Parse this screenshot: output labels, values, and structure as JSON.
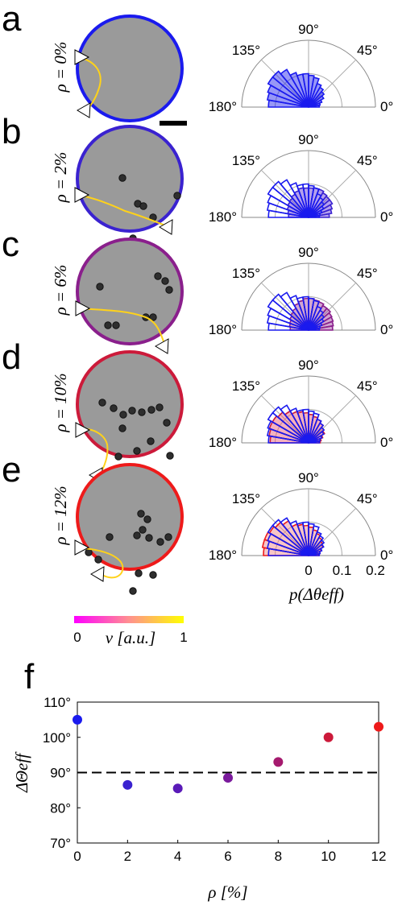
{
  "colorbar": {
    "min_label": "0",
    "max_label": "1",
    "label": "v [a.u.]",
    "colors": [
      "#ff00ff",
      "#ff9090",
      "#ffff00"
    ]
  },
  "chart_data": [
    {
      "type": "polar_histogram",
      "panel": "a",
      "rho_label": "ρ = 0%",
      "ring_color": "#1a1aee",
      "fill_color": "#1a1aee",
      "angle_labels": [
        "90°",
        "135°",
        "45°",
        "180°",
        "0°"
      ],
      "bins_deg": [
        0,
        10,
        20,
        30,
        40,
        50,
        60,
        70,
        80,
        90,
        100,
        110,
        120,
        130,
        140,
        150,
        160,
        170,
        180
      ],
      "values": [
        0.032,
        0.035,
        0.042,
        0.052,
        0.06,
        0.068,
        0.075,
        0.09,
        0.095,
        0.1,
        0.1,
        0.11,
        0.13,
        0.14,
        0.14,
        0.13,
        0.125,
        0.12
      ],
      "reference_values": []
    },
    {
      "type": "polar_histogram",
      "panel": "b",
      "rho_label": "ρ = 2%",
      "ring_color": "#3a22d0",
      "fill_color": "#5a2fd8",
      "angle_labels": [
        "90°",
        "135°",
        "45°",
        "180°",
        "0°"
      ],
      "bins_deg": [
        0,
        10,
        20,
        30,
        40,
        50,
        60,
        70,
        80,
        90,
        100,
        110,
        120,
        130,
        140,
        150,
        160,
        170,
        180
      ],
      "values": [
        0.062,
        0.07,
        0.075,
        0.082,
        0.082,
        0.085,
        0.09,
        0.09,
        0.088,
        0.088,
        0.09,
        0.085,
        0.08,
        0.075,
        0.072,
        0.068,
        0.063,
        0.06
      ],
      "reference_values": [
        0.032,
        0.035,
        0.042,
        0.052,
        0.06,
        0.068,
        0.075,
        0.09,
        0.095,
        0.1,
        0.1,
        0.11,
        0.13,
        0.14,
        0.14,
        0.13,
        0.125,
        0.12
      ]
    },
    {
      "type": "polar_histogram",
      "panel": "c",
      "rho_label": "ρ = 6%",
      "ring_color": "#8a1f8c",
      "fill_color": "#9a3a9c",
      "angle_labels": [
        "90°",
        "135°",
        "45°",
        "180°",
        "0°"
      ],
      "bins_deg": [
        0,
        10,
        20,
        30,
        40,
        50,
        60,
        70,
        80,
        90,
        100,
        110,
        120,
        130,
        140,
        150,
        160,
        170,
        180
      ],
      "values": [
        0.072,
        0.075,
        0.078,
        0.08,
        0.085,
        0.085,
        0.09,
        0.092,
        0.095,
        0.095,
        0.09,
        0.085,
        0.075,
        0.07,
        0.065,
        0.06,
        0.058,
        0.055
      ],
      "reference_values": [
        0.032,
        0.035,
        0.042,
        0.052,
        0.06,
        0.068,
        0.075,
        0.09,
        0.095,
        0.1,
        0.1,
        0.11,
        0.13,
        0.14,
        0.14,
        0.13,
        0.125,
        0.12
      ]
    },
    {
      "type": "polar_histogram",
      "panel": "d",
      "rho_label": "ρ = 10%",
      "ring_color": "#cc1a3a",
      "fill_color": "#e8556e",
      "angle_labels": [
        "90°",
        "135°",
        "45°",
        "180°",
        "0°"
      ],
      "bins_deg": [
        0,
        10,
        20,
        30,
        40,
        50,
        60,
        70,
        80,
        90,
        100,
        110,
        120,
        130,
        140,
        150,
        160,
        170,
        180
      ],
      "values": [
        0.035,
        0.038,
        0.045,
        0.055,
        0.06,
        0.068,
        0.075,
        0.08,
        0.085,
        0.09,
        0.095,
        0.1,
        0.11,
        0.12,
        0.125,
        0.125,
        0.12,
        0.115
      ],
      "reference_values": [
        0.032,
        0.035,
        0.042,
        0.052,
        0.06,
        0.068,
        0.075,
        0.09,
        0.095,
        0.1,
        0.1,
        0.11,
        0.13,
        0.14,
        0.14,
        0.13,
        0.125,
        0.12
      ]
    },
    {
      "type": "polar_histogram",
      "panel": "e",
      "rho_label": "ρ = 12%",
      "ring_color": "#ee1a1a",
      "fill_color": "#f08080",
      "angle_labels": [
        "90°",
        "135°",
        "45°",
        "180°",
        "0°"
      ],
      "bins_deg": [
        0,
        10,
        20,
        30,
        40,
        50,
        60,
        70,
        80,
        90,
        100,
        110,
        120,
        130,
        140,
        150,
        160,
        170,
        180
      ],
      "values": [
        0.03,
        0.035,
        0.04,
        0.05,
        0.055,
        0.062,
        0.07,
        0.078,
        0.085,
        0.09,
        0.095,
        0.1,
        0.12,
        0.13,
        0.135,
        0.14,
        0.14,
        0.135
      ],
      "reference_values": [
        0.032,
        0.035,
        0.042,
        0.052,
        0.06,
        0.068,
        0.075,
        0.09,
        0.095,
        0.1,
        0.1,
        0.11,
        0.13,
        0.14,
        0.14,
        0.13,
        0.125,
        0.12
      ],
      "radial_ticks": [
        0,
        0.1,
        0.2
      ],
      "radial_label": "p(Δθeff)"
    },
    {
      "type": "scatter",
      "panel": "f",
      "xlabel": "ρ [%]",
      "ylabel": "ΔΘeff",
      "x": [
        0,
        2,
        4,
        6,
        8,
        10,
        12
      ],
      "y": [
        105,
        86.5,
        85.5,
        88.5,
        93,
        100,
        103
      ],
      "point_colors": [
        "#1a1aee",
        "#3a22d0",
        "#5a1ab8",
        "#7a1a9c",
        "#a51a6e",
        "#cc1a3a",
        "#ee1a1a"
      ],
      "xlim": [
        0,
        12
      ],
      "ylim": [
        70,
        110
      ],
      "xticks": [
        "0",
        "2",
        "4",
        "6",
        "8",
        "10",
        "12"
      ],
      "yticks": [
        "70°",
        "80°",
        "90°",
        "100°",
        "110°"
      ],
      "reference_line": {
        "y": 90,
        "style": "dashed"
      }
    }
  ]
}
